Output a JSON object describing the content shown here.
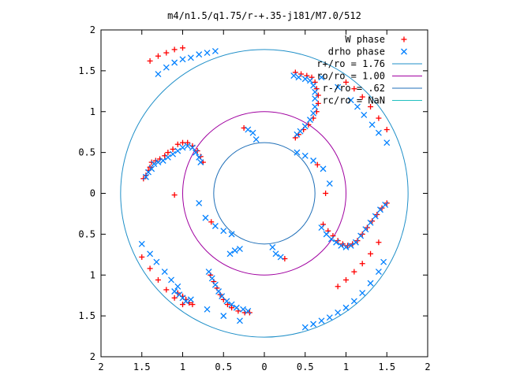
{
  "chart_data": {
    "type": "scatter",
    "title": "m4/n1.5/q1.75/r-+.35-j181/M7.0/512",
    "xlabel": "",
    "ylabel": "",
    "xlim": [
      -2,
      2
    ],
    "ylim": [
      -2,
      2
    ],
    "x_ticks": [
      -2,
      -1.5,
      -1,
      -0.5,
      0,
      0.5,
      1,
      1.5,
      2
    ],
    "y_ticks": [
      -2,
      -1.5,
      -1,
      -0.5,
      0,
      0.5,
      1,
      1.5,
      2
    ],
    "x_tick_labels": [
      "2",
      "1.5",
      "1",
      "0.5",
      "0",
      "0.5",
      "1",
      "1.5",
      "2"
    ],
    "y_tick_labels": [
      "2",
      "1.5",
      "1",
      "0.5",
      "0",
      "0.5",
      "1",
      "1.5",
      "2"
    ],
    "grid": false,
    "legend_position": "top-right",
    "series": [
      {
        "name": "W phase",
        "marker": "plus",
        "color": "#ff0000",
        "points": [
          [
            -1.48,
            0.18
          ],
          [
            -1.45,
            0.22
          ],
          [
            -1.42,
            0.28
          ],
          [
            -1.4,
            0.32
          ],
          [
            -1.38,
            0.38
          ],
          [
            -1.33,
            0.4
          ],
          [
            -1.28,
            0.42
          ],
          [
            -1.22,
            0.46
          ],
          [
            -1.18,
            0.5
          ],
          [
            -1.12,
            0.54
          ],
          [
            -1.06,
            0.6
          ],
          [
            -1.0,
            0.62
          ],
          [
            -0.94,
            0.62
          ],
          [
            -0.88,
            0.58
          ],
          [
            -0.82,
            0.52
          ],
          [
            -0.78,
            0.45
          ],
          [
            -0.75,
            0.38
          ],
          [
            -1.06,
            -1.22
          ],
          [
            -1.0,
            -1.26
          ],
          [
            -0.96,
            -1.3
          ],
          [
            -0.92,
            -1.34
          ],
          [
            -0.88,
            -1.36
          ],
          [
            -0.66,
            -1.0
          ],
          [
            -0.62,
            -1.08
          ],
          [
            -0.58,
            -1.16
          ],
          [
            -0.54,
            -1.24
          ],
          [
            -0.5,
            -1.3
          ],
          [
            -0.45,
            -1.36
          ],
          [
            -0.4,
            -1.4
          ],
          [
            -0.32,
            -1.44
          ],
          [
            -0.24,
            -1.46
          ],
          [
            -0.18,
            -1.46
          ],
          [
            0.38,
            1.48
          ],
          [
            0.45,
            1.46
          ],
          [
            0.52,
            1.44
          ],
          [
            0.58,
            1.42
          ],
          [
            0.62,
            1.36
          ],
          [
            0.64,
            1.28
          ],
          [
            0.66,
            1.2
          ],
          [
            0.66,
            1.1
          ],
          [
            0.64,
            1.0
          ],
          [
            0.6,
            0.92
          ],
          [
            0.54,
            0.84
          ],
          [
            0.48,
            0.78
          ],
          [
            0.42,
            0.72
          ],
          [
            0.38,
            0.68
          ],
          [
            0.72,
            -0.38
          ],
          [
            0.78,
            -0.46
          ],
          [
            0.84,
            -0.52
          ],
          [
            0.9,
            -0.58
          ],
          [
            0.96,
            -0.62
          ],
          [
            1.02,
            -0.64
          ],
          [
            1.08,
            -0.62
          ],
          [
            1.14,
            -0.58
          ],
          [
            1.2,
            -0.5
          ],
          [
            1.26,
            -0.42
          ],
          [
            1.32,
            -0.34
          ],
          [
            1.38,
            -0.26
          ],
          [
            1.44,
            -0.18
          ],
          [
            1.5,
            -0.12
          ],
          [
            -1.1,
            -0.02
          ],
          [
            0.75,
            -0.0
          ],
          [
            -0.25,
            0.8
          ],
          [
            0.25,
            -0.8
          ],
          [
            0.65,
            0.35
          ],
          [
            -0.65,
            -0.35
          ],
          [
            1.0,
            1.36
          ],
          [
            1.1,
            1.28
          ],
          [
            1.2,
            1.18
          ],
          [
            1.3,
            1.06
          ],
          [
            1.4,
            0.92
          ],
          [
            1.5,
            0.78
          ],
          [
            -1.0,
            -1.36
          ],
          [
            -1.1,
            -1.28
          ],
          [
            -1.2,
            -1.18
          ],
          [
            -1.3,
            -1.06
          ],
          [
            -1.4,
            -0.92
          ],
          [
            -1.5,
            -0.78
          ],
          [
            0.9,
            -1.14
          ],
          [
            1.0,
            -1.06
          ],
          [
            1.1,
            -0.96
          ],
          [
            1.2,
            -0.86
          ],
          [
            1.3,
            -0.74
          ],
          [
            1.4,
            -0.6
          ],
          [
            -1.4,
            1.62
          ],
          [
            -1.3,
            1.68
          ],
          [
            -1.2,
            1.72
          ],
          [
            -1.1,
            1.76
          ],
          [
            -1.0,
            1.78
          ]
        ]
      },
      {
        "name": "drho phase",
        "marker": "cross",
        "color": "#0080ff",
        "points": [
          [
            -1.45,
            0.2
          ],
          [
            -1.42,
            0.26
          ],
          [
            -1.38,
            0.3
          ],
          [
            -1.35,
            0.36
          ],
          [
            -1.3,
            0.38
          ],
          [
            -1.24,
            0.4
          ],
          [
            -1.18,
            0.44
          ],
          [
            -1.12,
            0.48
          ],
          [
            -1.06,
            0.52
          ],
          [
            -1.0,
            0.56
          ],
          [
            -0.94,
            0.58
          ],
          [
            -0.88,
            0.56
          ],
          [
            -0.84,
            0.5
          ],
          [
            -0.8,
            0.44
          ],
          [
            -0.78,
            0.38
          ],
          [
            -1.1,
            -1.2
          ],
          [
            -1.04,
            -1.24
          ],
          [
            -1.0,
            -1.28
          ],
          [
            -0.96,
            -1.32
          ],
          [
            -0.68,
            -0.96
          ],
          [
            -0.64,
            -1.04
          ],
          [
            -0.6,
            -1.12
          ],
          [
            -0.56,
            -1.2
          ],
          [
            -0.52,
            -1.26
          ],
          [
            -0.46,
            -1.32
          ],
          [
            -0.4,
            -1.36
          ],
          [
            -0.34,
            -1.4
          ],
          [
            -0.26,
            -1.42
          ],
          [
            -0.2,
            -1.44
          ],
          [
            -0.42,
            -0.74
          ],
          [
            -0.36,
            -0.7
          ],
          [
            -0.3,
            -0.68
          ],
          [
            0.36,
            1.44
          ],
          [
            0.42,
            1.42
          ],
          [
            0.5,
            1.4
          ],
          [
            0.56,
            1.38
          ],
          [
            0.6,
            1.32
          ],
          [
            0.62,
            1.24
          ],
          [
            0.62,
            1.16
          ],
          [
            0.62,
            1.06
          ],
          [
            0.6,
            0.98
          ],
          [
            0.56,
            0.9
          ],
          [
            0.5,
            0.82
          ],
          [
            0.44,
            0.76
          ],
          [
            0.4,
            0.72
          ],
          [
            0.7,
            -0.42
          ],
          [
            0.76,
            -0.5
          ],
          [
            0.82,
            -0.56
          ],
          [
            0.88,
            -0.6
          ],
          [
            0.94,
            -0.64
          ],
          [
            1.0,
            -0.66
          ],
          [
            1.06,
            -0.64
          ],
          [
            1.12,
            -0.6
          ],
          [
            1.18,
            -0.52
          ],
          [
            1.24,
            -0.44
          ],
          [
            1.3,
            -0.36
          ],
          [
            1.36,
            -0.28
          ],
          [
            1.42,
            -0.2
          ],
          [
            1.48,
            -0.14
          ],
          [
            -0.8,
            -0.12
          ],
          [
            -0.72,
            -0.3
          ],
          [
            -0.6,
            -0.4
          ],
          [
            -0.5,
            -0.46
          ],
          [
            -0.4,
            -0.5
          ],
          [
            0.4,
            0.5
          ],
          [
            0.5,
            0.46
          ],
          [
            0.6,
            0.4
          ],
          [
            0.72,
            0.3
          ],
          [
            0.8,
            0.12
          ],
          [
            -0.2,
            0.78
          ],
          [
            -0.14,
            0.74
          ],
          [
            -0.1,
            0.66
          ],
          [
            0.2,
            -0.78
          ],
          [
            0.14,
            -0.74
          ],
          [
            0.1,
            -0.66
          ],
          [
            -1.5,
            -0.62
          ],
          [
            -1.4,
            -0.74
          ],
          [
            -1.32,
            -0.84
          ],
          [
            -1.22,
            -0.96
          ],
          [
            -1.14,
            -1.06
          ],
          [
            -1.06,
            -1.14
          ],
          [
            -0.9,
            -1.3
          ],
          [
            -0.7,
            -1.42
          ],
          [
            -0.5,
            -1.5
          ],
          [
            -0.3,
            -1.56
          ],
          [
            1.5,
            0.62
          ],
          [
            1.4,
            0.74
          ],
          [
            1.32,
            0.84
          ],
          [
            1.22,
            0.96
          ],
          [
            1.14,
            1.06
          ],
          [
            1.06,
            1.14
          ],
          [
            0.9,
            1.3
          ],
          [
            0.7,
            1.42
          ],
          [
            0.5,
            -1.64
          ],
          [
            0.6,
            -1.6
          ],
          [
            0.7,
            -1.56
          ],
          [
            0.8,
            -1.52
          ],
          [
            0.9,
            -1.46
          ],
          [
            1.0,
            -1.4
          ],
          [
            1.1,
            -1.32
          ],
          [
            1.2,
            -1.22
          ],
          [
            1.3,
            -1.1
          ],
          [
            1.4,
            -0.96
          ],
          [
            1.46,
            -0.84
          ],
          [
            -1.1,
            1.6
          ],
          [
            -1.0,
            1.64
          ],
          [
            -0.9,
            1.66
          ],
          [
            -0.8,
            1.7
          ],
          [
            -0.7,
            1.72
          ],
          [
            -0.6,
            1.74
          ],
          [
            -1.2,
            1.54
          ],
          [
            -1.3,
            1.46
          ]
        ]
      },
      {
        "name": "r+/ro = 1.76",
        "marker": "line",
        "color": "#1f8fc8",
        "radius": 1.76
      },
      {
        "name": "ro/ro = 1.00",
        "marker": "line",
        "color": "#a000a0",
        "radius": 1.0
      },
      {
        "name": "r-/ro = .62",
        "marker": "line",
        "color": "#1f6fb8",
        "radius": 0.62
      },
      {
        "name": "rc/ro = NaN",
        "marker": "line",
        "color": "#20c0c0"
      }
    ]
  }
}
